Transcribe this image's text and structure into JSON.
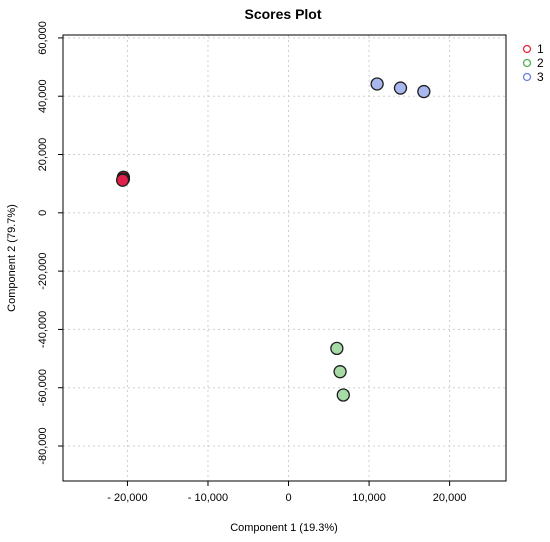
{
  "chart_data": {
    "type": "scatter",
    "title": "Scores Plot",
    "xlabel": "Component 1 (19.3%)",
    "ylabel": "Component 2 (79.7%)",
    "xlim": [
      -28000,
      27000
    ],
    "ylim": [
      -92000,
      61000
    ],
    "grid": true,
    "legend_position": "top-right",
    "x_ticks": [
      {
        "value": -20000,
        "label": "- 20,000"
      },
      {
        "value": -10000,
        "label": "- 10,000"
      },
      {
        "value": 0,
        "label": "0"
      },
      {
        "value": 10000,
        "label": "10,000"
      },
      {
        "value": 20000,
        "label": "20,000"
      }
    ],
    "y_ticks": [
      {
        "value": 60000,
        "label": "60,000"
      },
      {
        "value": 40000,
        "label": "40,000"
      },
      {
        "value": 20000,
        "label": "20,000"
      },
      {
        "value": 0,
        "label": "0"
      },
      {
        "value": -20000,
        "label": "-20,000"
      },
      {
        "value": -40000,
        "label": "-40,000"
      },
      {
        "value": -60000,
        "label": "-60,000"
      },
      {
        "value": -80000,
        "label": "-80,000"
      }
    ],
    "series": [
      {
        "name": "1",
        "color": "#e0204a",
        "legend_color": "#e8263f",
        "points": [
          {
            "x": -20500,
            "y": 12200
          },
          {
            "x": -20500,
            "y": 11600
          },
          {
            "x": -20600,
            "y": 11200
          }
        ]
      },
      {
        "name": "2",
        "color": "#a6dba6",
        "legend_color": "#4caf50",
        "points": [
          {
            "x": 6000,
            "y": -46500
          },
          {
            "x": 6400,
            "y": -54500
          },
          {
            "x": 6800,
            "y": -62500
          }
        ]
      },
      {
        "name": "3",
        "color": "#a8b8ee",
        "legend_color": "#6a7fd8",
        "points": [
          {
            "x": 11000,
            "y": 44200
          },
          {
            "x": 13900,
            "y": 42800
          },
          {
            "x": 16800,
            "y": 41600
          }
        ]
      }
    ]
  }
}
